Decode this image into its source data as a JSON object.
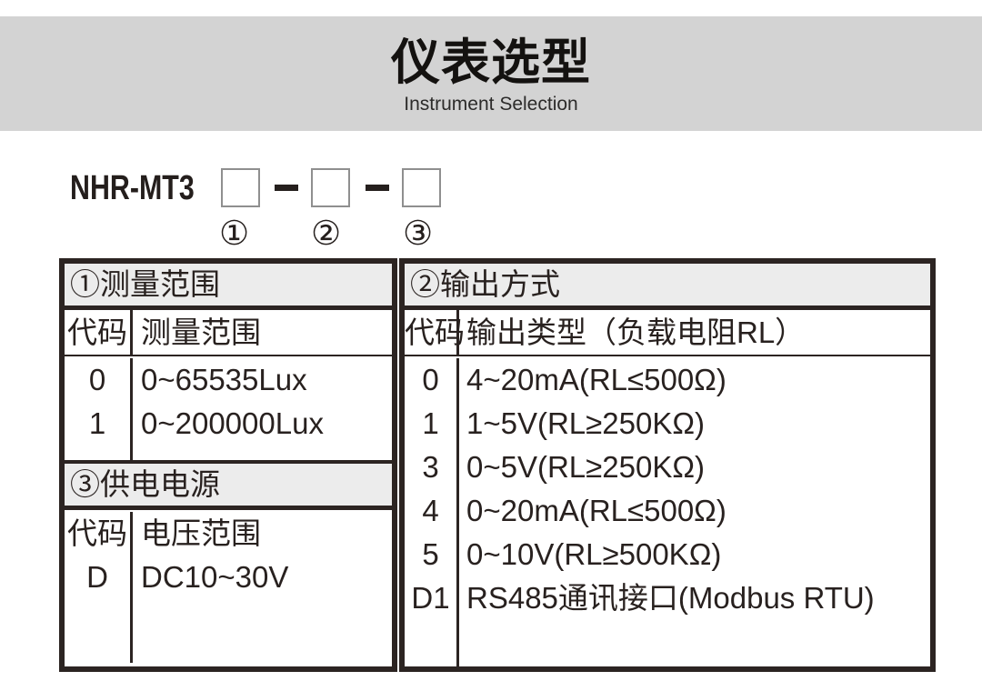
{
  "banner": {
    "title": "仪表选型",
    "subtitle": "Instrument Selection"
  },
  "model": {
    "prefix": "NHR-MT3",
    "separator": "-",
    "markers": [
      "①",
      "②",
      "③"
    ]
  },
  "tables": {
    "range": {
      "title": "①测量范围",
      "columns": [
        "代码",
        "测量范围"
      ],
      "rows": [
        [
          "0",
          "0~65535Lux"
        ],
        [
          "1",
          "0~200000Lux"
        ]
      ]
    },
    "output": {
      "title": "②输出方式",
      "columns": [
        "代码",
        "输出类型（负载电阻RL）"
      ],
      "rows": [
        [
          "0",
          "4~20mA(RL≤500Ω)"
        ],
        [
          "1",
          "1~5V(RL≥250KΩ)"
        ],
        [
          "3",
          "0~5V(RL≥250KΩ)"
        ],
        [
          "4",
          "0~20mA(RL≤500Ω)"
        ],
        [
          "5",
          "0~10V(RL≥500KΩ)"
        ],
        [
          "D1",
          "RS485通讯接口(Modbus RTU)"
        ]
      ]
    },
    "power": {
      "title": "③供电电源",
      "columns": [
        "代码",
        "电压范围"
      ],
      "rows": [
        [
          "D",
          "DC10~30V"
        ]
      ]
    }
  },
  "colors": {
    "banner_gray": "#d3d3d3",
    "section_band_gray": "#ececec",
    "line_dark": "#2c2422",
    "text_dark": "#28211f",
    "box_border_gray": "#8f8f8f"
  }
}
